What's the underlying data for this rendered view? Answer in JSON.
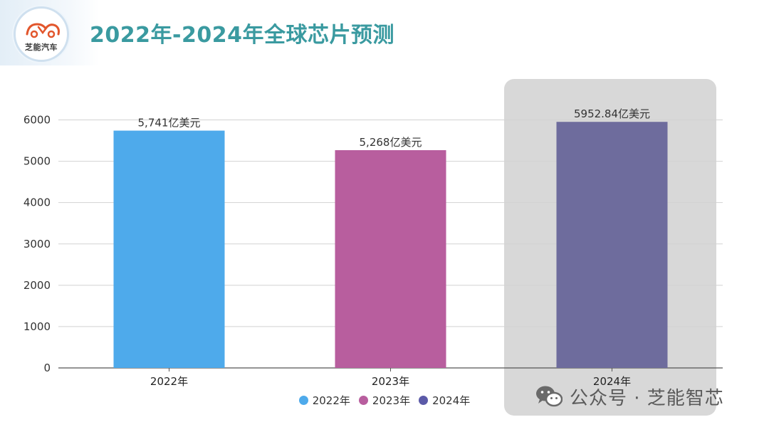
{
  "header": {
    "logo_text": "芝能汽车",
    "title": "2022年-2024年全球芯片预测"
  },
  "colors": {
    "title": "#3a9aa0",
    "highlight_panel": "#d8d8d8"
  },
  "chart_data": {
    "type": "bar",
    "categories": [
      "2022年",
      "2023年",
      "2024年"
    ],
    "values": [
      5741,
      5268,
      5952.84
    ],
    "data_labels": [
      "5,741亿美元",
      "5,268亿美元",
      "5952.84亿美元"
    ],
    "colors": [
      "#4eaaeb",
      "#b85e9e",
      "#6e6c9d"
    ],
    "ylim": [
      0,
      6000
    ],
    "yticks": [
      "0",
      "1000",
      "2000",
      "3000",
      "4000",
      "5000",
      "6000"
    ],
    "grid": true,
    "legend_position": "bottom",
    "legend": [
      {
        "label": "2022年",
        "color": "#4eaaeb"
      },
      {
        "label": "2023年",
        "color": "#b85e9e"
      },
      {
        "label": "2024年",
        "color": "#5b5aa8"
      }
    ],
    "highlighted_category": "2024年"
  },
  "watermark": {
    "icon": "wechat-icon",
    "text": "公众号 · 芝能智芯"
  }
}
